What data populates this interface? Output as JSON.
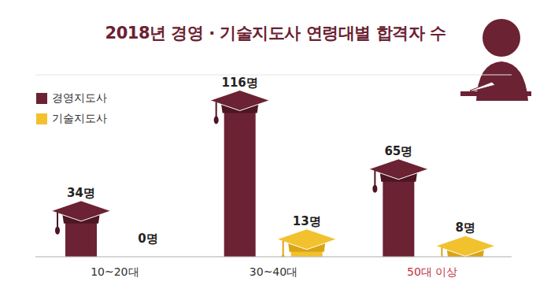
{
  "chart_data": {
    "type": "bar",
    "title": "2018년 경영 · 기술지도사 연령대별 합격자 수",
    "categories": [
      "10~20대",
      "30~40대",
      "50대 이상"
    ],
    "series": [
      {
        "name": "경영지도사",
        "color": "#6b2232",
        "values": [
          34,
          116,
          65
        ],
        "value_labels": [
          "34명",
          "116명",
          "65명"
        ]
      },
      {
        "name": "기술지도사",
        "color": "#f2c12e",
        "values": [
          0,
          13,
          8
        ],
        "value_labels": [
          "0명",
          "13명",
          "8명"
        ]
      }
    ],
    "ylim": [
      0,
      135
    ],
    "yticks": [
      0,
      15,
      30,
      45,
      60,
      75,
      90,
      105,
      120,
      135
    ],
    "grid": true,
    "legend": "top-left",
    "data_labels": true,
    "tick_labels": "x"
  }
}
